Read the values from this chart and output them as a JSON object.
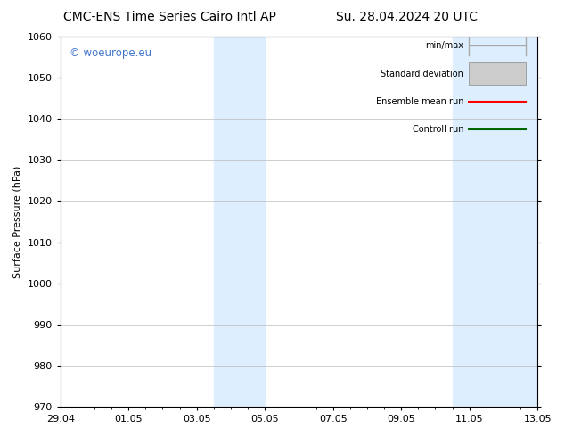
{
  "title_left": "CMC-ENS Time Series Cairo Intl AP",
  "title_right": "Su. 28.04.2024 20 UTC",
  "ylabel": "Surface Pressure (hPa)",
  "ylim": [
    970,
    1060
  ],
  "yticks": [
    970,
    980,
    990,
    1000,
    1010,
    1020,
    1030,
    1040,
    1050,
    1060
  ],
  "xtick_labels": [
    "29.04",
    "01.05",
    "03.05",
    "05.05",
    "07.05",
    "09.05",
    "11.05",
    "13.05"
  ],
  "xtick_positions": [
    0,
    2,
    4,
    6,
    8,
    10,
    12,
    14
  ],
  "xlim": [
    0,
    14
  ],
  "shaded_bands": [
    {
      "x_start": 4.5,
      "x_end": 6.0
    },
    {
      "x_start": 11.5,
      "x_end": 14.0
    }
  ],
  "watermark_text": "© woeurope.eu",
  "watermark_color": "#4477cc",
  "background_color": "#ffffff",
  "plot_bg_color": "#ffffff",
  "grid_color": "#bbbbbb",
  "legend_items": [
    {
      "label": "min/max",
      "color": "#aaaaaa",
      "style": "line_with_caps"
    },
    {
      "label": "Standard deviation",
      "color": "#cccccc",
      "style": "bar"
    },
    {
      "label": "Ensemble mean run",
      "color": "#ff0000",
      "style": "line"
    },
    {
      "label": "Controll run",
      "color": "#006600",
      "style": "line"
    }
  ],
  "band_color": "#ddeeff",
  "title_fontsize": 10,
  "tick_fontsize": 8,
  "label_fontsize": 8,
  "legend_fontsize": 7
}
